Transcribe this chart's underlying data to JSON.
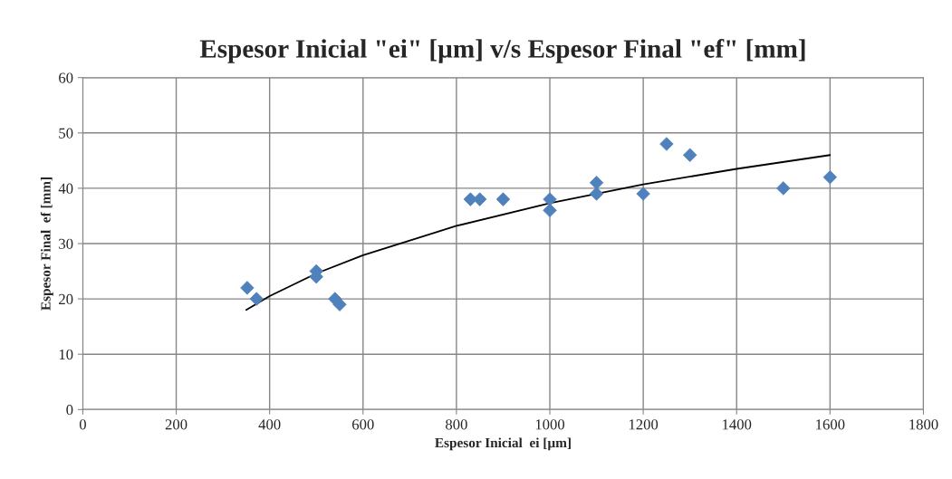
{
  "chart_data": {
    "type": "scatter",
    "title": "Espesor Inicial \"ei\" [µm] v/s Espesor Final \"ef\" [mm]",
    "xlabel": "Espesor Inicial  ei [µm]",
    "ylabel": "Espesor Final  ef [mm]",
    "series": [
      {
        "color": "#4f81bd",
        "marker": "diamond",
        "x": [
          352,
          372,
          500,
          500,
          540,
          550,
          830,
          850,
          900,
          1000,
          1000,
          1100,
          1100,
          1200,
          1250,
          1300,
          1500,
          1600
        ],
        "values": [
          22,
          20,
          25,
          24,
          20,
          19,
          38,
          38,
          38,
          38,
          36,
          41,
          39,
          39,
          48,
          46,
          40,
          42
        ]
      },
      {
        "type": "line",
        "color": "#000000",
        "marker": "none",
        "line_style": "solid",
        "x": [
          350,
          400,
          500,
          600,
          800,
          1000,
          1200,
          1400,
          1600
        ],
        "values": [
          18,
          20.5,
          24.6,
          27.9,
          33.2,
          37.3,
          40.7,
          43.5,
          46
        ]
      }
    ],
    "xlim": [
      0,
      1800
    ],
    "xticks": [
      0,
      200,
      400,
      600,
      800,
      1000,
      1200,
      1400,
      1600,
      1800
    ],
    "ylim": [
      0,
      60
    ],
    "yticks": [
      0,
      10,
      20,
      30,
      40,
      50,
      60
    ],
    "grid": true,
    "legend": false
  }
}
